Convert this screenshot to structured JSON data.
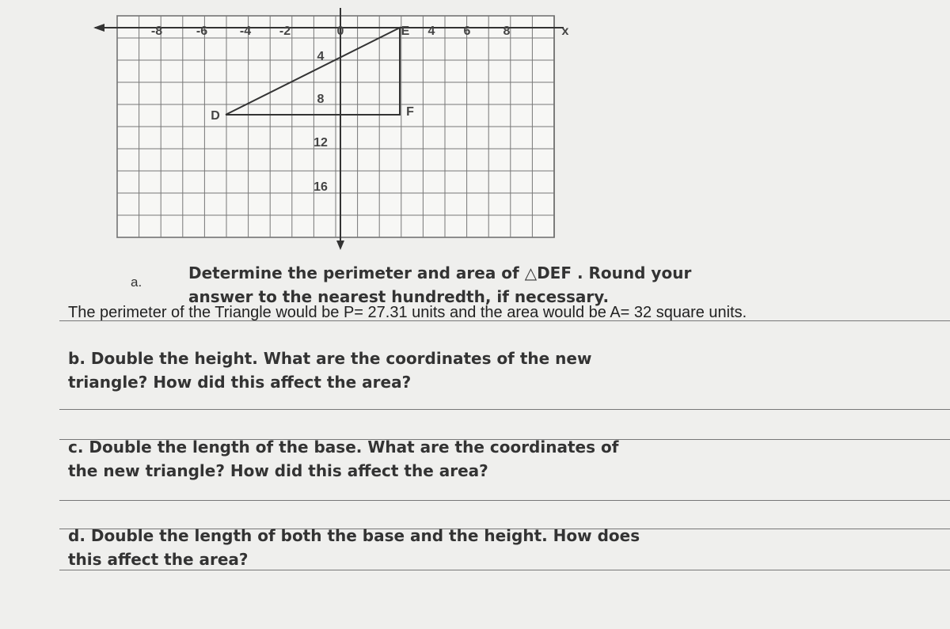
{
  "graph": {
    "x_labels": [
      "-8",
      "-6",
      "-4",
      "-2",
      "0",
      "E",
      "4",
      "6",
      "8",
      "x"
    ],
    "y_labels": [
      "4",
      "8",
      "12",
      "16"
    ],
    "points": [
      "D",
      "F"
    ]
  },
  "question_a": {
    "label": "a.",
    "prompt": "Determine the perimeter and area of △DEF . Round your answer to the nearest hundredth, if necessary.",
    "answer": "The perimeter of the Triangle would be P= 27.31 units and the area would be A= 32 square units."
  },
  "question_b": "b. Double the height. What are the coordinates of the new triangle? How did this affect the area?",
  "question_c": "c. Double the length of the base. What are the coordinates of the new triangle? How did this affect the area?",
  "question_d": "d. Double the length of both the base and the height. How does this affect the area?"
}
